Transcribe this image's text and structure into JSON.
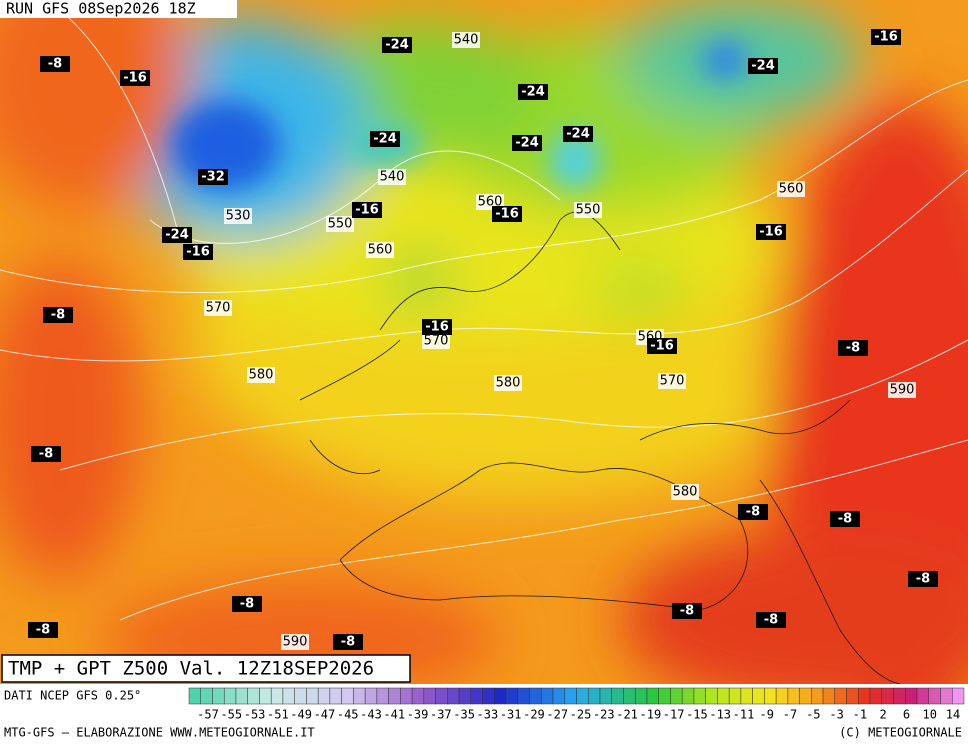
{
  "header": {
    "run": "RUN GFS 08Sep2026 18Z"
  },
  "map": {
    "title": "TMP + GPT Z500 Val. 12Z18SEP2026",
    "temperature_labels": [
      "-8",
      "-16",
      "-24",
      "-24",
      "-24",
      "-24",
      "-24",
      "-24",
      "-16",
      "-32",
      "-24",
      "-16",
      "-16",
      "-16",
      "-16",
      "-8",
      "-16",
      "-16",
      "-8",
      "-8",
      "-8",
      "-8",
      "-8",
      "-8",
      "-8",
      "-8",
      "-8",
      "-8"
    ],
    "geopotential_labels": [
      "540",
      "540",
      "530",
      "550",
      "560",
      "560",
      "550",
      "560",
      "570",
      "570",
      "560",
      "580",
      "580",
      "570",
      "590",
      "580",
      "590"
    ]
  },
  "legend": {
    "source": "DATI NCEP GFS 0.25°",
    "labels": [
      "-57",
      "-55",
      "-53",
      "-51",
      "-49",
      "-47",
      "-45",
      "-43",
      "-41",
      "-39",
      "-37",
      "-35",
      "-33",
      "-31",
      "-29",
      "-27",
      "-25",
      "-23",
      "-21",
      "-19",
      "-17",
      "-15",
      "-13",
      "-11",
      "-9",
      "-7",
      "-5",
      "-3",
      "-1",
      "2",
      "6",
      "10",
      "14"
    ]
  },
  "footer": {
    "left": "MTG-GFS — ELABORAZIONE WWW.METEOGIORNALE.IT",
    "right": "(C) METEOGIORNALE"
  }
}
